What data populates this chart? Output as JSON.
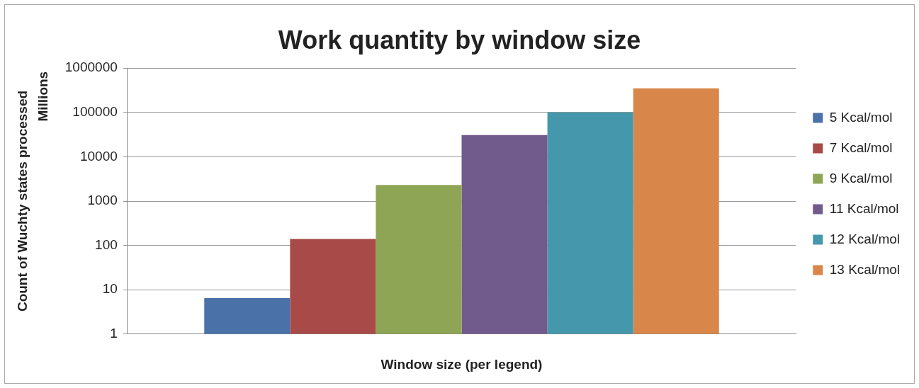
{
  "chart_data": {
    "type": "bar",
    "title": "Work quantity by window size",
    "xlabel": "Window size (per legend)",
    "ylabel": "Count of Wuchty states processed",
    "annotations": [
      "Millions"
    ],
    "categories": [
      null
    ],
    "series": [
      {
        "name": "5 Kcal/mol",
        "color": "#4a72a8",
        "values": [
          6.5
        ]
      },
      {
        "name": "7 Kcal/mol",
        "color": "#a84a48",
        "values": [
          140
        ]
      },
      {
        "name": "9 Kcal/mol",
        "color": "#8fa556",
        "values": [
          2300
        ]
      },
      {
        "name": "11 Kcal/mol",
        "color": "#715a8c",
        "values": [
          31000
        ]
      },
      {
        "name": "12 Kcal/mol",
        "color": "#4598ac",
        "values": [
          100000
        ]
      },
      {
        "name": "13 Kcal/mol",
        "color": "#d8864a",
        "values": [
          350000
        ]
      }
    ],
    "log": "y",
    "ylim": [
      1,
      1000000
    ],
    "yticks": [
      1,
      10,
      100,
      1000,
      10000,
      100000,
      1000000
    ],
    "grid": "y",
    "legend": "right"
  }
}
